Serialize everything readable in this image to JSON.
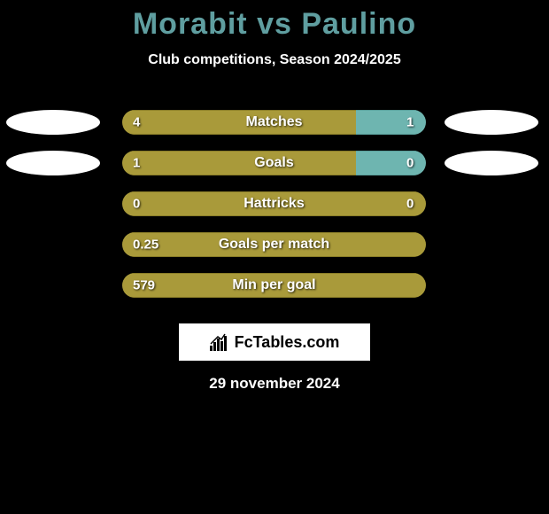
{
  "title": "Morabit vs Paulino",
  "subtitle": "Club competitions, Season 2024/2025",
  "date": "29 november 2024",
  "brand": "FcTables.com",
  "colors": {
    "title": "#5f9ea0",
    "bar_olive": "#a99a3a",
    "bar_teal": "#6eb5b0",
    "bar_border_olive": "#8a7d28",
    "ellipse": "#ffffff",
    "text": "#ffffff",
    "background": "#000000"
  },
  "stats": [
    {
      "label": "Matches",
      "left_value": "4",
      "right_value": "1",
      "left_ellipse": true,
      "right_ellipse": true,
      "segments": [
        {
          "color": "#a99a3a",
          "width_pct": 77,
          "border": "#8a7d28"
        },
        {
          "color": "#6eb5b0",
          "width_pct": 23,
          "border": "#5aa09b"
        }
      ]
    },
    {
      "label": "Goals",
      "left_value": "1",
      "right_value": "0",
      "left_ellipse": true,
      "right_ellipse": true,
      "segments": [
        {
          "color": "#a99a3a",
          "width_pct": 77,
          "border": "#8a7d28"
        },
        {
          "color": "#6eb5b0",
          "width_pct": 23,
          "border": "#5aa09b"
        }
      ]
    },
    {
      "label": "Hattricks",
      "left_value": "0",
      "right_value": "0",
      "left_ellipse": false,
      "right_ellipse": false,
      "segments": [
        {
          "color": "#a99a3a",
          "width_pct": 100,
          "border": "#8a7d28"
        }
      ]
    },
    {
      "label": "Goals per match",
      "left_value": "0.25",
      "right_value": "",
      "left_ellipse": false,
      "right_ellipse": false,
      "segments": [
        {
          "color": "#a99a3a",
          "width_pct": 100,
          "border": "#8a7d28"
        }
      ]
    },
    {
      "label": "Min per goal",
      "left_value": "579",
      "right_value": "",
      "left_ellipse": false,
      "right_ellipse": false,
      "segments": [
        {
          "color": "#a99a3a",
          "width_pct": 100,
          "border": "#8a7d28"
        }
      ]
    }
  ]
}
